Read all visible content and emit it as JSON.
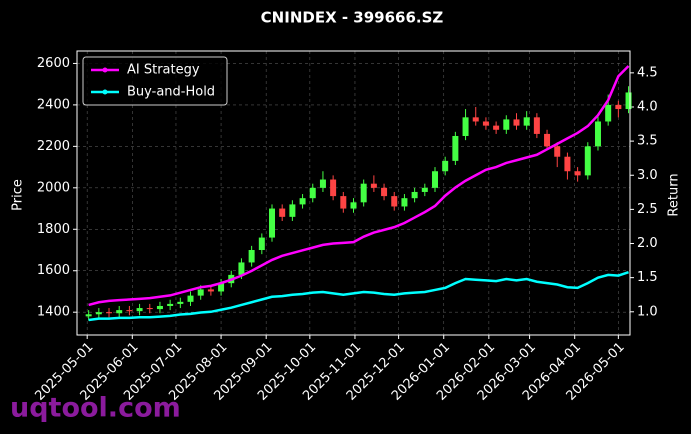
{
  "chart_data": {
    "type": "candlestick",
    "title": "CNINDEX - 399666.SZ",
    "ylabel": "Price",
    "y2label": "Return",
    "watermark": "uqtool.com",
    "x": [
      "2025-05-02",
      "2025-05-09",
      "2025-05-16",
      "2025-05-23",
      "2025-05-30",
      "2025-06-06",
      "2025-06-13",
      "2025-06-20",
      "2025-06-27",
      "2025-07-04",
      "2025-07-11",
      "2025-07-18",
      "2025-07-25",
      "2025-08-01",
      "2025-08-08",
      "2025-08-15",
      "2025-08-22",
      "2025-08-29",
      "2025-09-05",
      "2025-09-12",
      "2025-09-19",
      "2025-09-26",
      "2025-10-03",
      "2025-10-10",
      "2025-10-17",
      "2025-10-24",
      "2025-10-31",
      "2025-11-07",
      "2025-11-14",
      "2025-11-21",
      "2025-11-28",
      "2025-12-05",
      "2025-12-12",
      "2025-12-19",
      "2025-12-26",
      "2026-01-02",
      "2026-01-09",
      "2026-01-16",
      "2026-01-23",
      "2026-01-30",
      "2026-02-06",
      "2026-02-13",
      "2026-02-20",
      "2026-02-27",
      "2026-03-06",
      "2026-03-13",
      "2026-03-20",
      "2026-03-27",
      "2026-04-03",
      "2026-04-10",
      "2026-04-17",
      "2026-04-24",
      "2026-05-01",
      "2026-05-08"
    ],
    "open": [
      1380,
      1390,
      1400,
      1395,
      1410,
      1405,
      1420,
      1415,
      1430,
      1440,
      1450,
      1480,
      1510,
      1500,
      1540,
      1580,
      1640,
      1700,
      1760,
      1900,
      1860,
      1920,
      1950,
      2000,
      2040,
      1960,
      1900,
      1930,
      2020,
      2000,
      1960,
      1910,
      1950,
      1980,
      2000,
      2080,
      2130,
      2250,
      2340,
      2320,
      2300,
      2280,
      2330,
      2300,
      2340,
      2260,
      2200,
      2150,
      2080,
      2060,
      2200,
      2320,
      2400,
      2380
    ],
    "high": [
      1410,
      1420,
      1420,
      1430,
      1430,
      1440,
      1440,
      1450,
      1460,
      1470,
      1500,
      1530,
      1530,
      1560,
      1600,
      1660,
      1720,
      1780,
      1920,
      1920,
      1940,
      1970,
      2020,
      2080,
      2060,
      1980,
      1950,
      2040,
      2060,
      2020,
      1980,
      1970,
      2000,
      2020,
      2100,
      2150,
      2270,
      2380,
      2390,
      2340,
      2320,
      2350,
      2360,
      2370,
      2360,
      2280,
      2220,
      2170,
      2100,
      2220,
      2350,
      2450,
      2420,
      2490
    ],
    "low": [
      1360,
      1370,
      1375,
      1375,
      1385,
      1385,
      1395,
      1395,
      1410,
      1420,
      1430,
      1460,
      1480,
      1480,
      1520,
      1560,
      1620,
      1680,
      1740,
      1840,
      1840,
      1900,
      1930,
      1980,
      1940,
      1880,
      1880,
      1910,
      1980,
      1940,
      1890,
      1890,
      1930,
      1960,
      1980,
      2060,
      2110,
      2230,
      2300,
      2280,
      2260,
      2260,
      2280,
      2280,
      2240,
      2180,
      2100,
      2040,
      2030,
      2040,
      2180,
      2300,
      2340,
      2360
    ],
    "close": [
      1390,
      1400,
      1395,
      1410,
      1405,
      1420,
      1415,
      1430,
      1440,
      1450,
      1480,
      1510,
      1500,
      1540,
      1580,
      1640,
      1700,
      1760,
      1900,
      1860,
      1920,
      1950,
      2000,
      2040,
      1960,
      1900,
      1930,
      2020,
      2000,
      1960,
      1910,
      1950,
      1980,
      2000,
      2080,
      2130,
      2250,
      2340,
      2320,
      2300,
      2280,
      2330,
      2300,
      2340,
      2260,
      2200,
      2150,
      2080,
      2060,
      2200,
      2320,
      2400,
      2380,
      2460
    ],
    "up_color": "#44ff44",
    "down_color": "#ff4444",
    "series": [
      {
        "name": "AI Strategy",
        "color": "#ff00ff",
        "axis": "y2",
        "values": [
          1.1,
          1.14,
          1.16,
          1.17,
          1.18,
          1.19,
          1.2,
          1.22,
          1.24,
          1.28,
          1.32,
          1.36,
          1.38,
          1.42,
          1.47,
          1.53,
          1.6,
          1.68,
          1.76,
          1.82,
          1.86,
          1.9,
          1.94,
          1.98,
          2.0,
          2.01,
          2.02,
          2.1,
          2.16,
          2.2,
          2.24,
          2.3,
          2.38,
          2.46,
          2.55,
          2.7,
          2.82,
          2.92,
          3.0,
          3.08,
          3.12,
          3.18,
          3.22,
          3.26,
          3.3,
          3.38,
          3.46,
          3.54,
          3.62,
          3.72,
          3.88,
          4.1,
          4.45,
          4.6
        ]
      },
      {
        "name": "Buy-and-Hold",
        "color": "#00ffff",
        "axis": "y2",
        "values": [
          0.88,
          0.9,
          0.9,
          0.91,
          0.91,
          0.92,
          0.92,
          0.93,
          0.94,
          0.96,
          0.97,
          0.99,
          1.0,
          1.03,
          1.06,
          1.1,
          1.14,
          1.18,
          1.22,
          1.23,
          1.25,
          1.26,
          1.28,
          1.29,
          1.27,
          1.25,
          1.27,
          1.29,
          1.28,
          1.26,
          1.25,
          1.27,
          1.28,
          1.29,
          1.32,
          1.35,
          1.42,
          1.48,
          1.47,
          1.46,
          1.45,
          1.48,
          1.46,
          1.48,
          1.44,
          1.42,
          1.4,
          1.36,
          1.35,
          1.42,
          1.5,
          1.54,
          1.53,
          1.58
        ]
      }
    ],
    "xlim": [
      "2025-04-24",
      "2026-05-09"
    ],
    "xticks": [
      "2025-05-01",
      "2025-06-01",
      "2025-07-01",
      "2025-08-01",
      "2025-09-01",
      "2025-10-01",
      "2025-11-01",
      "2025-12-01",
      "2026-01-01",
      "2026-02-01",
      "2026-03-01",
      "2026-04-01",
      "2026-05-01"
    ],
    "ylim": [
      1290,
      2660
    ],
    "yticks": [
      1400,
      1600,
      1800,
      2000,
      2200,
      2400,
      2600
    ],
    "y2lim": [
      0.66,
      4.82
    ],
    "y2ticks": [
      {
        "value": 1,
        "label": "1.0"
      },
      1.5,
      {
        "value": 2,
        "label": "2.0"
      },
      2.5,
      {
        "value": 3,
        "label": "3.0"
      },
      3.5,
      {
        "value": 4,
        "label": "4.0"
      },
      4.5
    ],
    "grid": true,
    "legend": "upper left"
  }
}
